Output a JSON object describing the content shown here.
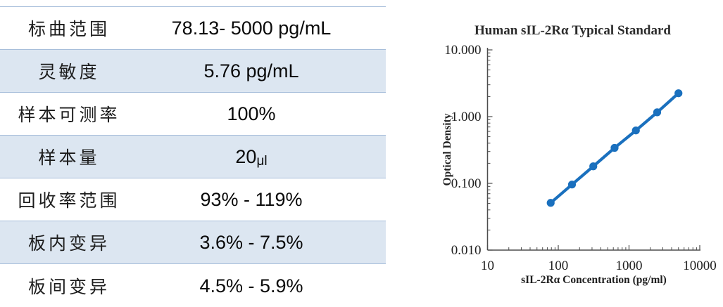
{
  "table": {
    "band_color": "#dce6f1",
    "border_color": "#a6bdda",
    "rows": [
      {
        "label": "标曲范围",
        "value": "78.13- 5000 pg/mL"
      },
      {
        "label": "灵敏度",
        "value": "5.76 pg/mL"
      },
      {
        "label": "样本可测率",
        "value": "100%"
      },
      {
        "label": "样本量",
        "value": "20",
        "unit": "μl"
      },
      {
        "label": "回收率范围",
        "value": "93% - 119%"
      },
      {
        "label": "板内变异",
        "value": "3.6% - 7.5%"
      },
      {
        "label": "板间变异",
        "value": "4.5% - 5.9%"
      }
    ]
  },
  "chart_data": {
    "type": "line",
    "title": "Human sIL-2Rα Typical Standard",
    "xlabel": "sIL-2Rα Concentration (pg/ml)",
    "ylabel": "Optical Density",
    "x_scale": "log",
    "y_scale": "log",
    "xlim": [
      10,
      10000
    ],
    "ylim": [
      0.01,
      10
    ],
    "grid": false,
    "legend": "none",
    "x_ticks": {
      "values": [
        10,
        100,
        1000,
        10000
      ],
      "labels": [
        "10",
        "100",
        "1000",
        "10000"
      ]
    },
    "y_ticks": {
      "values": [
        10,
        1,
        0.1,
        0.01
      ],
      "labels": [
        "10.000",
        "1.000",
        "0.100",
        "0.010"
      ]
    },
    "axis_color": "#4d4d4d",
    "series": [
      {
        "name": "Typical Standard",
        "color": "#1a70be",
        "x": [
          78.13,
          156.25,
          312.5,
          625,
          1250,
          2500,
          5000
        ],
        "y": [
          0.051,
          0.096,
          0.18,
          0.34,
          0.62,
          1.16,
          2.24
        ]
      }
    ]
  }
}
